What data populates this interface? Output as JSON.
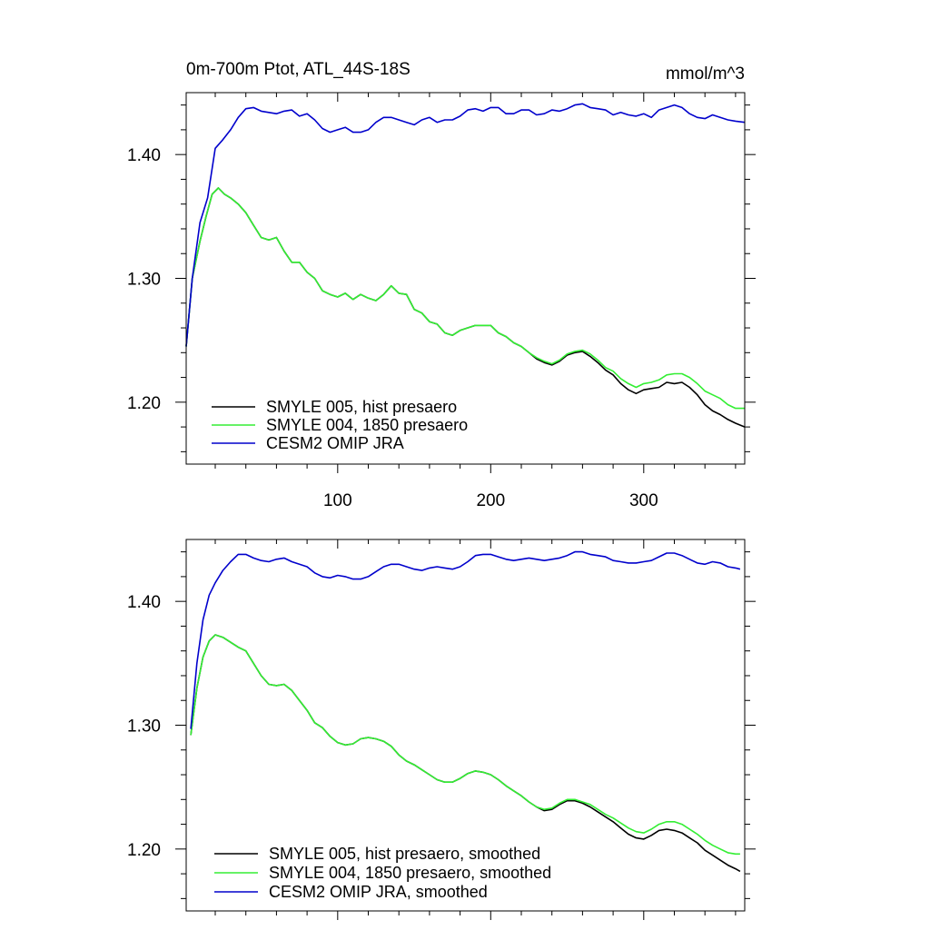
{
  "chart_data": [
    {
      "type": "line",
      "title": "0m-700m Ptot, ATL_44S-18S",
      "units": "mmol/m^3",
      "xlabel": "",
      "ylabel": "",
      "xlim": [
        1,
        366
      ],
      "ylim": [
        1.15,
        1.45
      ],
      "x_ticks": [
        100,
        200,
        300
      ],
      "x_tick_labels": [
        "100",
        "200",
        "300"
      ],
      "y_ticks": [
        1.2,
        1.3,
        1.4
      ],
      "y_tick_labels": [
        "1.20",
        "1.30",
        "1.40"
      ],
      "legend": "bottom-left",
      "series": [
        {
          "name": "SMYLE 005, hist presaero",
          "color": "#000000",
          "x": [
            1,
            5,
            10,
            14,
            18,
            22,
            26,
            30,
            35,
            40,
            45,
            50,
            55,
            60,
            65,
            70,
            75,
            80,
            85,
            90,
            95,
            100,
            105,
            110,
            115,
            120,
            125,
            130,
            135,
            140,
            145,
            150,
            155,
            160,
            165,
            170,
            175,
            180,
            185,
            190,
            195,
            200,
            205,
            210,
            215,
            220,
            225,
            230,
            235,
            240,
            245,
            250,
            255,
            260,
            265,
            270,
            275,
            280,
            285,
            290,
            295,
            300,
            305,
            310,
            315,
            320,
            325,
            330,
            335,
            340,
            345,
            350,
            355,
            360,
            366
          ],
          "y": [
            1.245,
            1.3,
            1.33,
            1.35,
            1.368,
            1.373,
            1.368,
            1.365,
            1.36,
            1.353,
            1.343,
            1.333,
            1.331,
            1.333,
            1.322,
            1.313,
            1.313,
            1.305,
            1.3,
            1.29,
            1.287,
            1.285,
            1.288,
            1.283,
            1.287,
            1.284,
            1.282,
            1.287,
            1.294,
            1.288,
            1.287,
            1.275,
            1.272,
            1.265,
            1.263,
            1.256,
            1.254,
            1.258,
            1.26,
            1.262,
            1.262,
            1.262,
            1.256,
            1.253,
            1.248,
            1.245,
            1.24,
            1.235,
            1.232,
            1.23,
            1.233,
            1.238,
            1.24,
            1.241,
            1.237,
            1.232,
            1.226,
            1.222,
            1.215,
            1.21,
            1.207,
            1.21,
            1.211,
            1.212,
            1.216,
            1.215,
            1.216,
            1.212,
            1.206,
            1.198,
            1.193,
            1.19,
            1.186,
            1.183,
            1.18
          ]
        },
        {
          "name": "SMYLE 004, 1850 presaero",
          "color": "#33ee33",
          "x": [
            1,
            5,
            10,
            14,
            18,
            22,
            26,
            30,
            35,
            40,
            45,
            50,
            55,
            60,
            65,
            70,
            75,
            80,
            85,
            90,
            95,
            100,
            105,
            110,
            115,
            120,
            125,
            130,
            135,
            140,
            145,
            150,
            155,
            160,
            165,
            170,
            175,
            180,
            185,
            190,
            195,
            200,
            205,
            210,
            215,
            220,
            225,
            230,
            235,
            240,
            245,
            250,
            255,
            260,
            265,
            270,
            275,
            280,
            285,
            290,
            295,
            300,
            305,
            310,
            315,
            320,
            325,
            330,
            335,
            340,
            345,
            350,
            355,
            360,
            366
          ],
          "y": [
            1.245,
            1.3,
            1.33,
            1.35,
            1.368,
            1.373,
            1.368,
            1.365,
            1.36,
            1.353,
            1.343,
            1.333,
            1.331,
            1.333,
            1.322,
            1.313,
            1.313,
            1.305,
            1.3,
            1.29,
            1.287,
            1.285,
            1.288,
            1.283,
            1.287,
            1.284,
            1.282,
            1.287,
            1.294,
            1.288,
            1.287,
            1.275,
            1.272,
            1.265,
            1.263,
            1.256,
            1.254,
            1.258,
            1.26,
            1.262,
            1.262,
            1.262,
            1.256,
            1.253,
            1.248,
            1.245,
            1.24,
            1.236,
            1.233,
            1.231,
            1.234,
            1.239,
            1.241,
            1.242,
            1.239,
            1.234,
            1.228,
            1.225,
            1.219,
            1.215,
            1.212,
            1.215,
            1.216,
            1.218,
            1.222,
            1.223,
            1.223,
            1.22,
            1.215,
            1.209,
            1.206,
            1.203,
            1.198,
            1.195,
            1.195
          ]
        },
        {
          "name": "CESM2 OMIP JRA",
          "color": "#0000cc",
          "x": [
            1,
            5,
            10,
            15,
            20,
            25,
            30,
            35,
            40,
            45,
            50,
            55,
            60,
            65,
            70,
            75,
            80,
            85,
            90,
            95,
            100,
            105,
            110,
            115,
            120,
            125,
            130,
            135,
            140,
            145,
            150,
            155,
            160,
            165,
            170,
            175,
            180,
            185,
            190,
            195,
            200,
            205,
            210,
            215,
            220,
            225,
            230,
            235,
            240,
            245,
            250,
            255,
            260,
            265,
            270,
            275,
            280,
            285,
            290,
            295,
            300,
            305,
            310,
            315,
            320,
            325,
            330,
            335,
            340,
            345,
            350,
            355,
            360,
            366
          ],
          "y": [
            1.245,
            1.3,
            1.345,
            1.365,
            1.405,
            1.412,
            1.42,
            1.43,
            1.437,
            1.438,
            1.435,
            1.434,
            1.433,
            1.435,
            1.436,
            1.431,
            1.433,
            1.428,
            1.421,
            1.418,
            1.42,
            1.422,
            1.418,
            1.418,
            1.42,
            1.426,
            1.43,
            1.43,
            1.428,
            1.426,
            1.424,
            1.428,
            1.43,
            1.426,
            1.428,
            1.428,
            1.431,
            1.436,
            1.437,
            1.435,
            1.438,
            1.438,
            1.433,
            1.433,
            1.436,
            1.436,
            1.432,
            1.433,
            1.436,
            1.435,
            1.437,
            1.44,
            1.441,
            1.438,
            1.437,
            1.436,
            1.432,
            1.434,
            1.432,
            1.431,
            1.433,
            1.43,
            1.436,
            1.438,
            1.44,
            1.438,
            1.433,
            1.43,
            1.429,
            1.432,
            1.43,
            1.428,
            1.427,
            1.426
          ]
        }
      ]
    },
    {
      "type": "line",
      "title": "",
      "xlabel": "",
      "ylabel": "",
      "xlim": [
        1,
        366
      ],
      "ylim": [
        1.15,
        1.45
      ],
      "x_ticks": [
        100,
        200,
        300
      ],
      "y_ticks": [
        1.2,
        1.3,
        1.4
      ],
      "y_tick_labels": [
        "1.20",
        "1.30",
        "1.40"
      ],
      "legend": "bottom-left",
      "series": [
        {
          "name": "SMYLE 005, hist presaero, smoothed",
          "color": "#000000",
          "x": [
            4,
            8,
            12,
            16,
            20,
            25,
            30,
            35,
            40,
            45,
            50,
            55,
            60,
            65,
            70,
            75,
            80,
            85,
            90,
            95,
            100,
            105,
            110,
            115,
            120,
            125,
            130,
            135,
            140,
            145,
            150,
            155,
            160,
            165,
            170,
            175,
            180,
            185,
            190,
            195,
            200,
            205,
            210,
            215,
            220,
            225,
            230,
            235,
            240,
            245,
            250,
            255,
            260,
            265,
            270,
            275,
            280,
            285,
            290,
            295,
            300,
            305,
            310,
            315,
            320,
            325,
            330,
            335,
            340,
            345,
            350,
            355,
            360,
            363
          ],
          "y": [
            1.292,
            1.33,
            1.355,
            1.368,
            1.373,
            1.371,
            1.367,
            1.363,
            1.36,
            1.35,
            1.34,
            1.333,
            1.332,
            1.333,
            1.328,
            1.32,
            1.312,
            1.302,
            1.298,
            1.291,
            1.286,
            1.284,
            1.285,
            1.289,
            1.29,
            1.289,
            1.287,
            1.283,
            1.276,
            1.271,
            1.268,
            1.264,
            1.26,
            1.256,
            1.254,
            1.254,
            1.257,
            1.261,
            1.263,
            1.262,
            1.26,
            1.256,
            1.251,
            1.247,
            1.243,
            1.238,
            1.234,
            1.231,
            1.232,
            1.236,
            1.239,
            1.239,
            1.237,
            1.234,
            1.23,
            1.226,
            1.222,
            1.217,
            1.212,
            1.209,
            1.208,
            1.211,
            1.215,
            1.216,
            1.215,
            1.213,
            1.209,
            1.205,
            1.199,
            1.195,
            1.191,
            1.187,
            1.184,
            1.182
          ]
        },
        {
          "name": "SMYLE 004, 1850 presaero, smoothed",
          "color": "#33ee33",
          "x": [
            4,
            8,
            12,
            16,
            20,
            25,
            30,
            35,
            40,
            45,
            50,
            55,
            60,
            65,
            70,
            75,
            80,
            85,
            90,
            95,
            100,
            105,
            110,
            115,
            120,
            125,
            130,
            135,
            140,
            145,
            150,
            155,
            160,
            165,
            170,
            175,
            180,
            185,
            190,
            195,
            200,
            205,
            210,
            215,
            220,
            225,
            230,
            235,
            240,
            245,
            250,
            255,
            260,
            265,
            270,
            275,
            280,
            285,
            290,
            295,
            300,
            305,
            310,
            315,
            320,
            325,
            330,
            335,
            340,
            345,
            350,
            355,
            360,
            363
          ],
          "y": [
            1.292,
            1.33,
            1.355,
            1.368,
            1.373,
            1.371,
            1.367,
            1.363,
            1.36,
            1.35,
            1.34,
            1.333,
            1.332,
            1.333,
            1.328,
            1.32,
            1.312,
            1.302,
            1.298,
            1.291,
            1.286,
            1.284,
            1.285,
            1.289,
            1.29,
            1.289,
            1.287,
            1.283,
            1.276,
            1.271,
            1.268,
            1.264,
            1.26,
            1.256,
            1.254,
            1.254,
            1.257,
            1.261,
            1.263,
            1.262,
            1.26,
            1.256,
            1.251,
            1.247,
            1.243,
            1.238,
            1.234,
            1.232,
            1.233,
            1.237,
            1.24,
            1.24,
            1.238,
            1.236,
            1.232,
            1.228,
            1.225,
            1.221,
            1.217,
            1.214,
            1.213,
            1.216,
            1.22,
            1.222,
            1.222,
            1.22,
            1.216,
            1.212,
            1.207,
            1.203,
            1.2,
            1.197,
            1.196,
            1.196
          ]
        },
        {
          "name": "CESM2 OMIP JRA, smoothed",
          "color": "#0000cc",
          "x": [
            4,
            8,
            12,
            16,
            20,
            25,
            30,
            35,
            40,
            45,
            50,
            55,
            60,
            65,
            70,
            75,
            80,
            85,
            90,
            95,
            100,
            105,
            110,
            115,
            120,
            125,
            130,
            135,
            140,
            145,
            150,
            155,
            160,
            165,
            170,
            175,
            180,
            185,
            190,
            195,
            200,
            205,
            210,
            215,
            220,
            225,
            230,
            235,
            240,
            245,
            250,
            255,
            260,
            265,
            270,
            275,
            280,
            285,
            290,
            295,
            300,
            305,
            310,
            315,
            320,
            325,
            330,
            335,
            340,
            345,
            350,
            355,
            360,
            363
          ],
          "y": [
            1.297,
            1.35,
            1.385,
            1.405,
            1.415,
            1.425,
            1.432,
            1.438,
            1.438,
            1.435,
            1.433,
            1.432,
            1.434,
            1.435,
            1.432,
            1.43,
            1.428,
            1.423,
            1.42,
            1.419,
            1.421,
            1.42,
            1.418,
            1.418,
            1.42,
            1.424,
            1.428,
            1.43,
            1.43,
            1.428,
            1.426,
            1.425,
            1.427,
            1.428,
            1.427,
            1.426,
            1.428,
            1.432,
            1.437,
            1.438,
            1.438,
            1.436,
            1.434,
            1.433,
            1.434,
            1.435,
            1.434,
            1.433,
            1.434,
            1.435,
            1.437,
            1.44,
            1.44,
            1.438,
            1.437,
            1.436,
            1.433,
            1.432,
            1.431,
            1.431,
            1.432,
            1.433,
            1.436,
            1.439,
            1.439,
            1.437,
            1.434,
            1.431,
            1.43,
            1.432,
            1.431,
            1.428,
            1.427,
            1.426
          ]
        }
      ]
    }
  ]
}
